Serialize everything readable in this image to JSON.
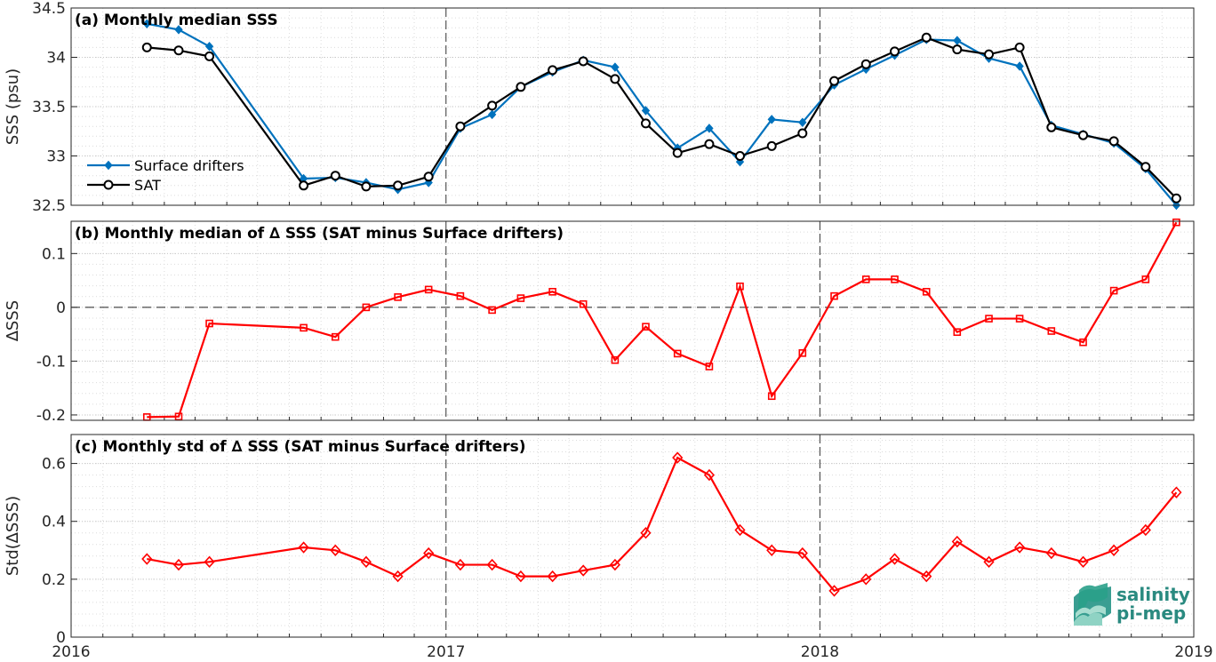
{
  "chart_data": [
    {
      "type": "line",
      "title": "(a) Monthly median SSS",
      "ylabel": "SSS (psu)",
      "ylim": [
        32.5,
        34.5
      ],
      "yticks": [
        "32.5",
        "33",
        "33.5",
        "34",
        "34.5"
      ],
      "grid": true,
      "legend": "lower-left",
      "series": [
        {
          "name": "Surface drifters",
          "color": "#0072bd",
          "marker": "diamond-filled",
          "x": [
            "2016-03",
            "2016-04",
            "2016-05",
            "2016-08",
            "2016-09",
            "2016-10",
            "2016-11",
            "2016-12",
            "2017-01",
            "2017-02",
            "2017-03",
            "2017-04",
            "2017-05",
            "2017-06",
            "2017-07",
            "2017-08",
            "2017-09",
            "2017-10",
            "2017-11",
            "2017-12",
            "2018-01",
            "2018-02",
            "2018-03",
            "2018-04",
            "2018-05",
            "2018-06",
            "2018-07",
            "2018-08",
            "2018-09",
            "2018-10",
            "2018-11",
            "2018-12"
          ],
          "values": [
            34.34,
            34.28,
            34.11,
            32.77,
            32.78,
            32.73,
            32.66,
            32.73,
            33.28,
            33.42,
            33.7,
            33.85,
            33.97,
            33.9,
            33.46,
            33.08,
            33.28,
            32.94,
            33.37,
            33.34,
            33.72,
            33.88,
            34.02,
            34.18,
            34.17,
            33.99,
            33.91,
            33.31,
            33.22,
            33.13,
            32.87,
            32.5
          ]
        },
        {
          "name": "SAT",
          "color": "#000000",
          "marker": "circle-open",
          "x": [
            "2016-03",
            "2016-04",
            "2016-05",
            "2016-08",
            "2016-09",
            "2016-10",
            "2016-11",
            "2016-12",
            "2017-01",
            "2017-02",
            "2017-03",
            "2017-04",
            "2017-05",
            "2017-06",
            "2017-07",
            "2017-08",
            "2017-09",
            "2017-10",
            "2017-11",
            "2017-12",
            "2018-01",
            "2018-02",
            "2018-03",
            "2018-04",
            "2018-05",
            "2018-06",
            "2018-07",
            "2018-08",
            "2018-09",
            "2018-10",
            "2018-11",
            "2018-12"
          ],
          "values": [
            34.1,
            34.07,
            34.01,
            32.7,
            32.8,
            32.69,
            32.7,
            32.79,
            33.3,
            33.51,
            33.7,
            33.87,
            33.96,
            33.78,
            33.33,
            33.03,
            33.12,
            33.0,
            33.1,
            33.23,
            33.76,
            33.93,
            34.06,
            34.2,
            34.08,
            34.03,
            34.1,
            33.29,
            33.21,
            33.15,
            32.89,
            32.57
          ]
        }
      ]
    },
    {
      "type": "line",
      "title": "(b) Monthly median of ∆ SSS (SAT minus Surface drifters)",
      "ylabel": "∆SSS",
      "ylim": [
        -0.21,
        0.16
      ],
      "yticks": [
        "-0.2",
        "-0.1",
        "0",
        "0.1"
      ],
      "grid": true,
      "reference_line": 0,
      "series": [
        {
          "color": "#ff0000",
          "marker": "square-open",
          "x": [
            "2016-03",
            "2016-04",
            "2016-05",
            "2016-08",
            "2016-09",
            "2016-10",
            "2016-11",
            "2016-12",
            "2017-01",
            "2017-02",
            "2017-03",
            "2017-04",
            "2017-05",
            "2017-06",
            "2017-07",
            "2017-08",
            "2017-09",
            "2017-10",
            "2017-11",
            "2017-12",
            "2018-01",
            "2018-02",
            "2018-03",
            "2018-04",
            "2018-05",
            "2018-06",
            "2018-07",
            "2018-08",
            "2018-09",
            "2018-10",
            "2018-11",
            "2018-12"
          ],
          "values": [
            -0.204,
            -0.203,
            -0.03,
            -0.038,
            -0.055,
            0.0,
            0.019,
            0.033,
            0.021,
            -0.005,
            0.017,
            0.029,
            0.006,
            -0.098,
            -0.036,
            -0.086,
            -0.11,
            0.039,
            -0.165,
            -0.085,
            0.021,
            0.052,
            0.052,
            0.029,
            -0.046,
            -0.021,
            -0.021,
            -0.044,
            -0.065,
            0.031,
            0.052,
            0.158
          ]
        }
      ]
    },
    {
      "type": "line",
      "title": "(c) Monthly std of ∆ SSS (SAT minus Surface drifters)",
      "ylabel": "Std(∆SSS)",
      "ylim": [
        0,
        0.7
      ],
      "yticks": [
        "0",
        "0.2",
        "0.4",
        "0.6"
      ],
      "xlabels": [
        "2016",
        "2017",
        "2018",
        "2019"
      ],
      "grid": true,
      "series": [
        {
          "color": "#ff0000",
          "marker": "diamond-open",
          "x": [
            "2016-03",
            "2016-04",
            "2016-05",
            "2016-08",
            "2016-09",
            "2016-10",
            "2016-11",
            "2016-12",
            "2017-01",
            "2017-02",
            "2017-03",
            "2017-04",
            "2017-05",
            "2017-06",
            "2017-07",
            "2017-08",
            "2017-09",
            "2017-10",
            "2017-11",
            "2017-12",
            "2018-01",
            "2018-02",
            "2018-03",
            "2018-04",
            "2018-05",
            "2018-06",
            "2018-07",
            "2018-08",
            "2018-09",
            "2018-10",
            "2018-11",
            "2018-12"
          ],
          "values": [
            0.27,
            0.25,
            0.26,
            0.31,
            0.3,
            0.26,
            0.21,
            0.29,
            0.25,
            0.25,
            0.21,
            0.21,
            0.23,
            0.25,
            0.36,
            0.62,
            0.56,
            0.37,
            0.3,
            0.29,
            0.16,
            0.2,
            0.27,
            0.21,
            0.33,
            0.26,
            0.31,
            0.29,
            0.26,
            0.3,
            0.37,
            0.5
          ]
        }
      ]
    }
  ],
  "logo": {
    "line1": "salinity",
    "line2": "pi-mep"
  }
}
